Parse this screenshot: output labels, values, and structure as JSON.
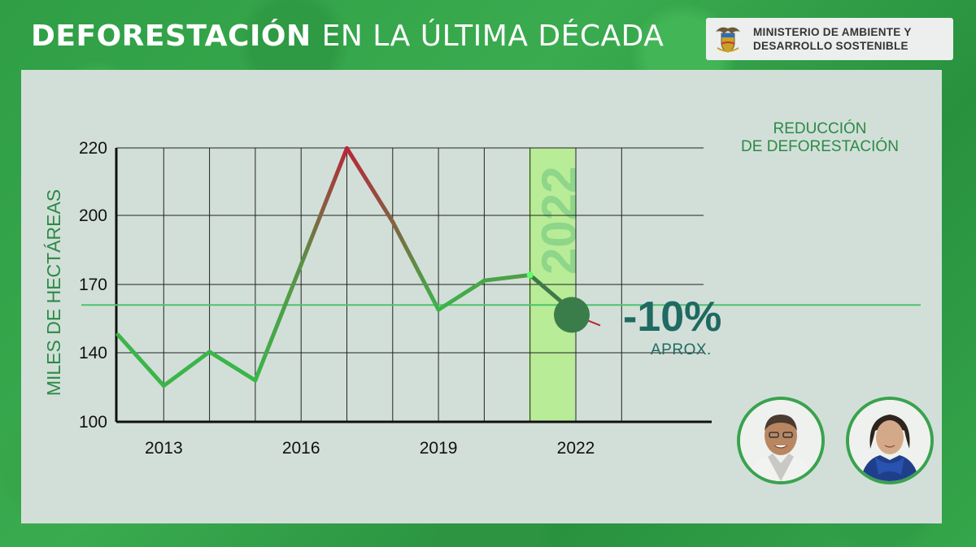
{
  "header": {
    "title_bold": "DEFORESTACIÓN",
    "title_light": "EN LA ÚLTIMA DÉCADA",
    "ministry_line1": "MINISTERIO DE AMBIENTE Y",
    "ministry_line2": "DESARROLLO SOSTENIBLE"
  },
  "annotation": {
    "label_line1": "REDUCCIÓN",
    "label_line2": "DE DEFORESTACIÓN",
    "value": "-10%",
    "note": "APROX."
  },
  "colors": {
    "line_green": "#3bb54a",
    "line_red": "#b8263a",
    "highlight": "#b5ef8c",
    "reference": "#4ec46b",
    "text_green": "#2b8a45",
    "stat_teal": "#1f6a62"
  },
  "chart_data": {
    "type": "line",
    "title": "",
    "xlabel": "",
    "ylabel": "MILES DE HECTÁREAS",
    "y_ticks": [
      100,
      140,
      170,
      200,
      220
    ],
    "x_tick_labels": [
      "2013",
      "2016",
      "2019",
      "2022"
    ],
    "x": [
      2012,
      2013,
      2014,
      2015,
      2016,
      2017,
      2018,
      2019,
      2020,
      2021,
      2022
    ],
    "series": [
      {
        "values": [
          147.9,
          120.9,
          140.4,
          124.0,
          178.6,
          219.9,
          197.2,
          158.9,
          171.7,
          174.1,
          157.0
        ]
      }
    ],
    "highlight_year": "2022",
    "reference_value": 161,
    "grid": true
  }
}
